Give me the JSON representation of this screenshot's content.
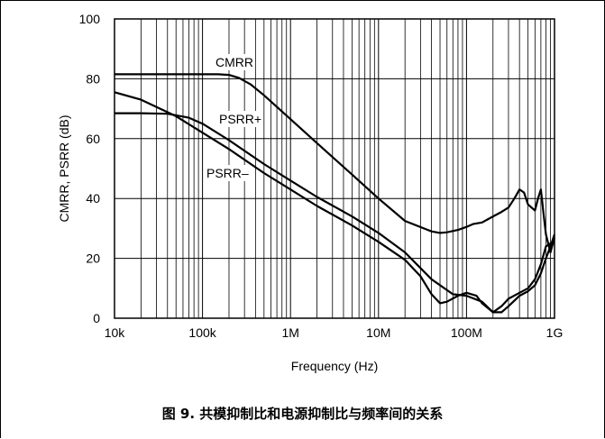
{
  "caption": "图 9. 共模抑制比和电源抑制比与频率间的关系",
  "chart_data": {
    "type": "line",
    "title": "",
    "xlabel": "Frequency (Hz)",
    "ylabel": "CMRR, PSRR (dB)",
    "x_scale": "log",
    "xlim": [
      10000,
      1000000000
    ],
    "ylim": [
      0,
      100
    ],
    "x_ticks": [
      {
        "value": 10000,
        "label": "10k"
      },
      {
        "value": 100000,
        "label": "100k"
      },
      {
        "value": 1000000,
        "label": "1M"
      },
      {
        "value": 10000000,
        "label": "10M"
      },
      {
        "value": 100000000,
        "label": "100M"
      },
      {
        "value": 1000000000,
        "label": "1G"
      }
    ],
    "y_ticks": [
      {
        "value": 0,
        "label": "0"
      },
      {
        "value": 20,
        "label": "20"
      },
      {
        "value": 40,
        "label": "40"
      },
      {
        "value": 60,
        "label": "60"
      },
      {
        "value": 80,
        "label": "80"
      },
      {
        "value": 100,
        "label": "100"
      }
    ],
    "grid": true,
    "series": [
      {
        "name": "CMRR",
        "x": [
          10000,
          50000,
          150000,
          200000,
          260000,
          350000,
          500000,
          1000000,
          2000000,
          5000000,
          10000000,
          20000000,
          40000000,
          50000000,
          60000000,
          80000000,
          100000000,
          120000000,
          150000000,
          200000000,
          250000000,
          300000000,
          350000000,
          400000000,
          450000000,
          500000000,
          600000000,
          650000000,
          700000000,
          750000000,
          800000000,
          900000000,
          1000000000
        ],
        "y": [
          81.5,
          81.5,
          81.5,
          81.3,
          80.3,
          78.2,
          74.5,
          66.5,
          58.5,
          48,
          40,
          32.5,
          29,
          28.5,
          28.7,
          29.5,
          30.5,
          31.5,
          32,
          34,
          35.5,
          37,
          40,
          43,
          42,
          38,
          36,
          40,
          43,
          35,
          28,
          22,
          27
        ]
      },
      {
        "name": "PSRR+",
        "x": [
          10000,
          20000,
          40000,
          70000,
          100000,
          200000,
          500000,
          1000000,
          2000000,
          5000000,
          10000000,
          20000000,
          40000000,
          70000000,
          100000000,
          150000000,
          200000000,
          250000000,
          300000000,
          400000000,
          500000000,
          600000000,
          700000000,
          800000000,
          900000000,
          1000000000
        ],
        "y": [
          68.5,
          68.5,
          68.3,
          67,
          65,
          59.5,
          51.5,
          46,
          40.5,
          34,
          28.5,
          22,
          13,
          8,
          7.5,
          5.5,
          2,
          4,
          6.5,
          8.5,
          10,
          13,
          18,
          24,
          25,
          25
        ]
      },
      {
        "name": "PSRR−",
        "x": [
          10000,
          20000,
          50000,
          100000,
          200000,
          500000,
          1000000,
          2000000,
          5000000,
          10000000,
          20000000,
          30000000,
          40000000,
          50000000,
          60000000,
          80000000,
          100000000,
          130000000,
          150000000,
          200000000,
          250000000,
          300000000,
          400000000,
          500000000,
          600000000,
          700000000,
          800000000,
          900000000,
          1000000000
        ],
        "y": [
          75.5,
          73,
          67.5,
          62,
          56.5,
          48.5,
          43,
          37.5,
          31,
          25.5,
          19.5,
          14,
          8,
          5,
          5.5,
          7.5,
          8.5,
          7.5,
          5,
          2,
          2,
          4,
          7.5,
          9,
          11,
          15,
          20,
          24,
          28
        ]
      }
    ],
    "annotations": [
      {
        "text": "CMRR",
        "series": "CMRR"
      },
      {
        "text": "PSRR+",
        "series": "PSRR+"
      },
      {
        "text": "PSRR–",
        "series": "PSRR−"
      }
    ]
  }
}
